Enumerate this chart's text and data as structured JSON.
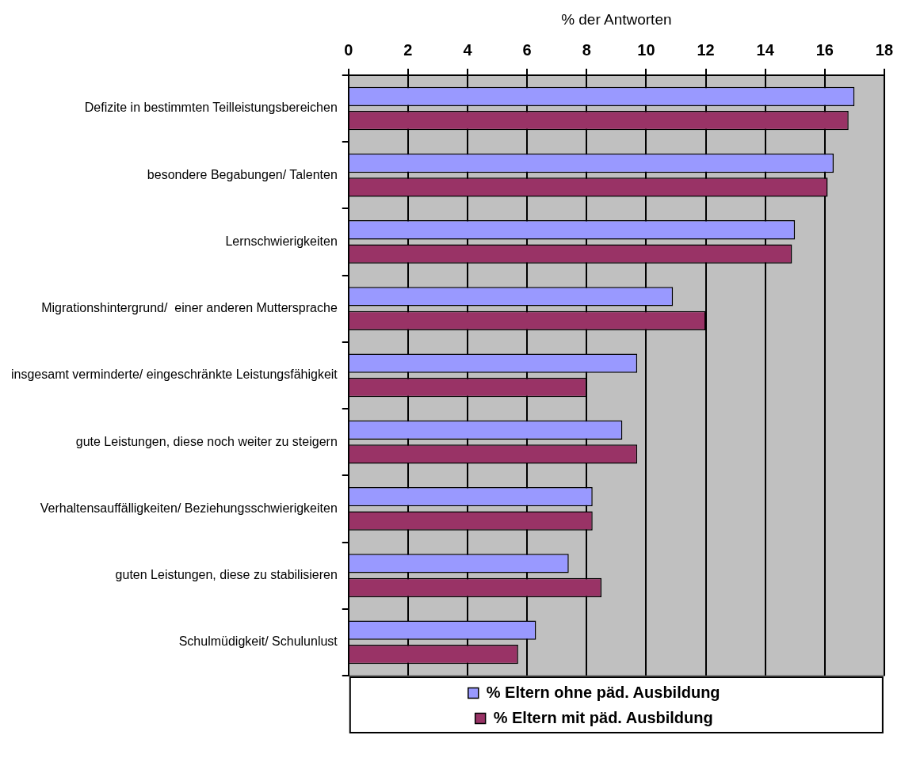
{
  "chart_data": {
    "type": "bar",
    "orientation": "horizontal",
    "xlabel": "% der Antworten",
    "categories": [
      "Defizite in bestimmten Teilleistungsbereichen",
      "besondere Begabungen/ Talenten",
      "Lernschwierigkeiten",
      "Migrationshintergrund/  einer anderen Muttersprache",
      "insgesamt verminderte/ eingeschränkte Leistungsfähigkeit",
      "gute Leistungen, diese noch weiter zu steigern",
      "Verhaltensauffälligkeiten/ Beziehungsschwierigkeiten",
      "guten Leistungen, diese zu stabilisieren",
      "Schulmüdigkeit/ Schulunlust"
    ],
    "series": [
      {
        "name": "% Eltern ohne päd. Ausbildung",
        "color": "#9999ff",
        "values": [
          17.0,
          16.3,
          15.0,
          10.9,
          9.7,
          9.2,
          8.2,
          7.4,
          6.3
        ]
      },
      {
        "name": "% Eltern mit päd. Ausbildung",
        "color": "#993366",
        "values": [
          16.8,
          16.1,
          14.9,
          12.0,
          8.0,
          9.7,
          8.2,
          8.5,
          5.7
        ]
      }
    ],
    "xlim": [
      0,
      18
    ],
    "xticks": [
      0,
      2,
      4,
      6,
      8,
      10,
      12,
      14,
      16,
      18
    ],
    "grid": "x",
    "legend": "bottom"
  }
}
